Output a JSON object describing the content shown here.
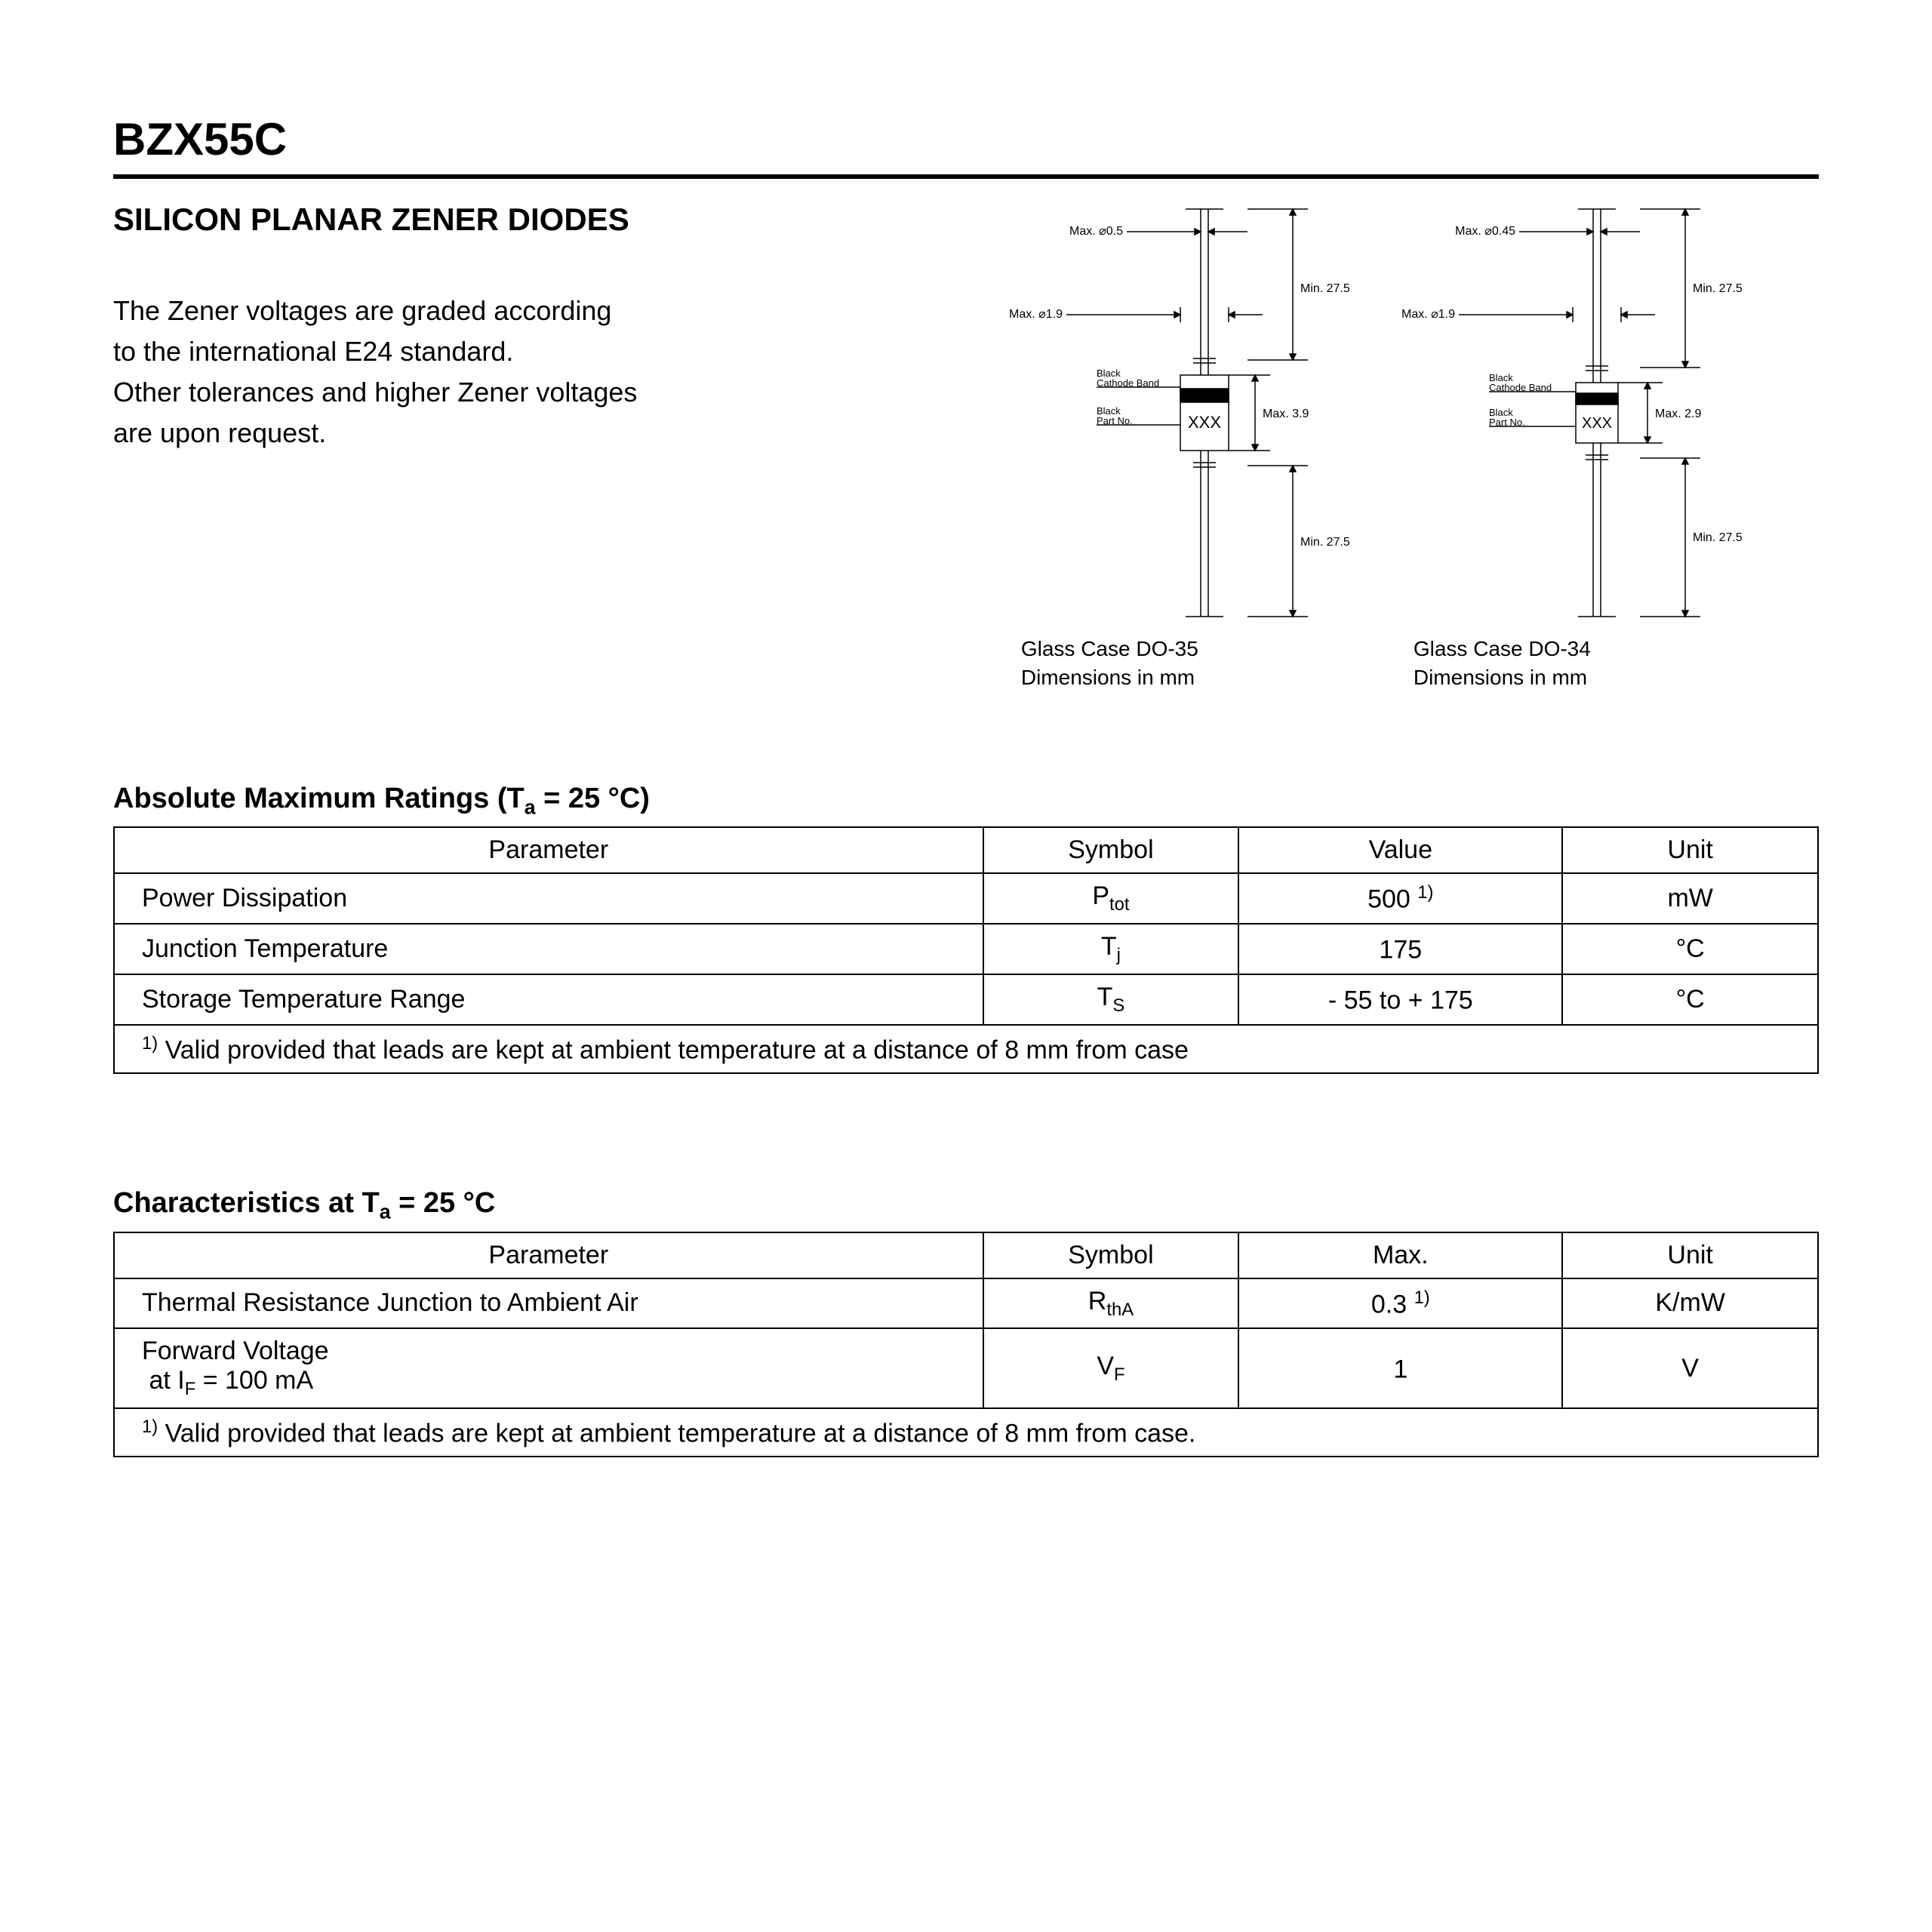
{
  "header": {
    "part_number": "BZX55C",
    "subtitle": "SILICON PLANAR ZENER DIODES",
    "description_lines": [
      "The Zener voltages are graded according",
      "to the international E24 standard.",
      "Other tolerances and higher Zener voltages",
      "are upon request."
    ]
  },
  "packages": {
    "left": {
      "max_top": "Max. ⌀0.5",
      "max_left": "Max. ⌀1.9",
      "min_upper": "Min. 27.5",
      "body_max": "Max. 3.9",
      "min_lower": "Min. 27.5",
      "cathode_label_1": "Black",
      "cathode_label_2": "Cathode Band",
      "partno_label_1": "Black",
      "partno_label_2": "Part No.",
      "body_text": "XXX",
      "caption_1": "Glass Case DO-35",
      "caption_2": "Dimensions in mm"
    },
    "right": {
      "max_top": "Max. ⌀0.45",
      "max_left": "Max. ⌀1.9",
      "min_upper": "Min. 27.5",
      "body_max": "Max. 2.9",
      "min_lower": "Min. 27.5",
      "cathode_label_1": "Black",
      "cathode_label_2": "Cathode Band",
      "partno_label_1": "Black",
      "partno_label_2": "Part No.",
      "body_text": "XXX",
      "caption_1": "Glass Case DO-34",
      "caption_2": "Dimensions in mm"
    }
  },
  "table1": {
    "title_prefix": "Absolute Maximum Ratings (T",
    "title_sub": "a",
    "title_suffix": " = 25 °C)",
    "headers": {
      "c1": "Parameter",
      "c2": "Symbol",
      "c3": "Value",
      "c4": "Unit"
    },
    "rows": [
      {
        "param": "Power Dissipation",
        "sym_base": "P",
        "sym_sub": "tot",
        "value": "500",
        "value_sup": "1)",
        "unit": "mW"
      },
      {
        "param": "Junction Temperature",
        "sym_base": "T",
        "sym_sub": "j",
        "value": "175",
        "value_sup": "",
        "unit": "°C"
      },
      {
        "param": "Storage Temperature Range",
        "sym_base": "T",
        "sym_sub": "S",
        "value": "- 55 to + 175",
        "value_sup": "",
        "unit": "°C"
      }
    ],
    "footnote_sup": "1)",
    "footnote": " Valid provided that leads are kept at ambient temperature at a distance of 8 mm from case"
  },
  "table2": {
    "title_prefix": "Characteristics at T",
    "title_sub": "a",
    "title_suffix": " = 25 °C",
    "headers": {
      "c1": "Parameter",
      "c2": "Symbol",
      "c3": "Max.",
      "c4": "Unit"
    },
    "rows": [
      {
        "param_html": "Thermal Resistance Junction to Ambient Air",
        "sym_base": "R",
        "sym_sub": "thA",
        "value": "0.3",
        "value_sup": "1)",
        "unit": "K/mW"
      },
      {
        "param_html": "Forward Voltage<br>&nbsp;at I<sub>F</sub> = 100 mA",
        "sym_base": "V",
        "sym_sub": "F",
        "value": "1",
        "value_sup": "",
        "unit": "V"
      }
    ],
    "footnote_sup": "1)",
    "footnote": " Valid provided that leads are kept at ambient temperature at a distance of 8 mm from case."
  },
  "colors": {
    "text": "#000000",
    "bg": "#ffffff",
    "rule": "#000000",
    "border": "#000000",
    "band": "#000000",
    "body_fill": "#ffffff"
  }
}
